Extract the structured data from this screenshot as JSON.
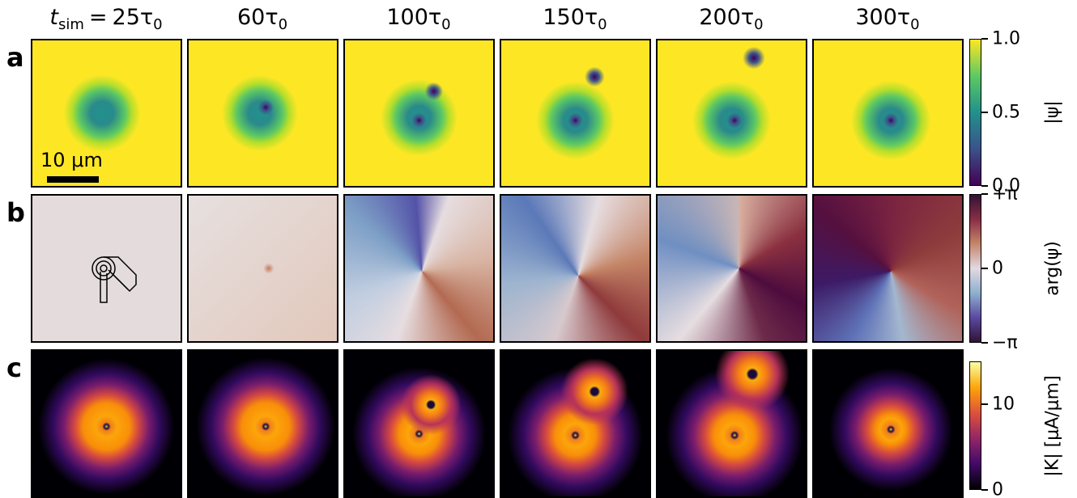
{
  "header": {
    "time_symbol": "t",
    "time_sub": "sim",
    "equals": "=",
    "columns": [
      "25τ",
      "60τ",
      "100τ",
      "150τ",
      "200τ",
      "300τ"
    ],
    "tau_sub": "0"
  },
  "rows": [
    "a",
    "b",
    "c"
  ],
  "scale_bar": "10 μm",
  "colorbars": [
    {
      "label": "|ψ|",
      "lim": [
        0,
        1
      ],
      "ticks": [
        {
          "value": 0,
          "label": "0.0"
        },
        {
          "value": 0.5,
          "label": "0.5"
        },
        {
          "value": 1,
          "label": "1.0"
        }
      ]
    },
    {
      "label": "arg(ψ)",
      "lim": [
        -3.14159,
        3.14159
      ],
      "ticks": [
        {
          "value": -3.14159,
          "label": "−π"
        },
        0,
        {
          "value": 3.14159,
          "label": "+π"
        }
      ]
    },
    {
      "label": "|K| [μA/μm]",
      "lim": [
        0,
        15
      ],
      "ticks": [
        0,
        10
      ]
    }
  ]
}
